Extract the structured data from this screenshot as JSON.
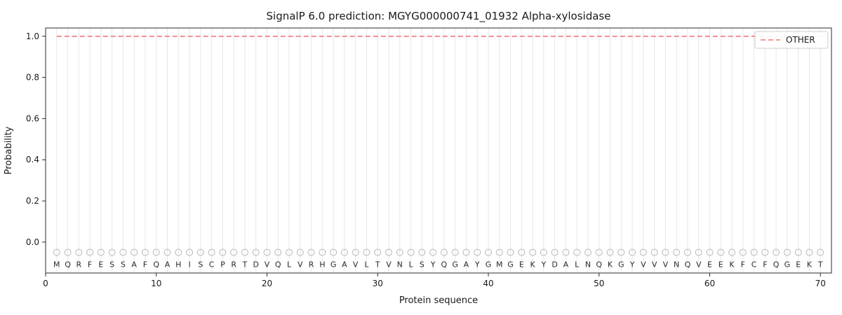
{
  "chart_data": {
    "type": "line",
    "title": "SignalP 6.0 prediction: MGYG000000741_01932 Alpha-xylosidase",
    "xlabel": "Protein sequence",
    "ylabel": "Probability",
    "xlim": [
      0,
      71
    ],
    "ylim": [
      -0.15,
      1.04
    ],
    "x_ticks": [
      0,
      10,
      20,
      30,
      40,
      50,
      60,
      70
    ],
    "y_ticks": [
      0.0,
      0.2,
      0.4,
      0.6,
      0.8,
      1.0
    ],
    "grid": "vertical-line-per-residue",
    "legend": {
      "position": "upper right",
      "entries": [
        {
          "label": "OTHER",
          "color": "#f07878",
          "style": "dashed"
        }
      ]
    },
    "series": [
      {
        "name": "OTHER",
        "style": "dashed",
        "color": "#f07878",
        "value": 1.0,
        "x_start": 1,
        "x_end": 70
      }
    ],
    "sequence": [
      "M",
      "Q",
      "R",
      "F",
      "E",
      "S",
      "S",
      "A",
      "F",
      "Q",
      "A",
      "H",
      "I",
      "S",
      "C",
      "P",
      "R",
      "T",
      "D",
      "V",
      "Q",
      "L",
      "V",
      "R",
      "H",
      "G",
      "A",
      "V",
      "L",
      "T",
      "V",
      "N",
      "L",
      "S",
      "Y",
      "Q",
      "G",
      "A",
      "Y",
      "G",
      "M",
      "G",
      "E",
      "K",
      "Y",
      "D",
      "A",
      "L",
      "N",
      "Q",
      "K",
      "G",
      "Y",
      "V",
      "V",
      "V",
      "N",
      "Q",
      "V",
      "E",
      "E",
      "K",
      "F",
      "C",
      "F",
      "Q",
      "G",
      "E",
      "K",
      "T"
    ],
    "residue_marker": {
      "shape": "open-circle",
      "y": -0.05,
      "color": "#bdbdbd"
    },
    "grid_color": "#e7e7e7",
    "spine_color": "#2b2b2b"
  }
}
